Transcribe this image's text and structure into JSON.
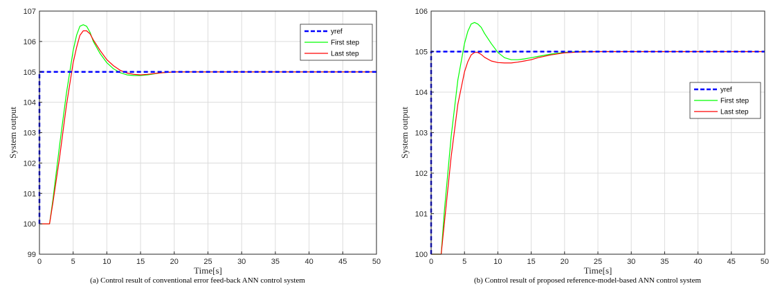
{
  "chart_data": [
    {
      "type": "line",
      "caption": "(a) Control result of conventional error feed-back ANN control system",
      "xlabel": "Time[s]",
      "ylabel": "System output",
      "xlim": [
        0,
        50
      ],
      "ylim": [
        99,
        107
      ],
      "xticks": [
        0,
        5,
        10,
        15,
        20,
        25,
        30,
        35,
        40,
        45,
        50
      ],
      "yticks": [
        99,
        100,
        101,
        102,
        103,
        104,
        105,
        106,
        107
      ],
      "grid": true,
      "legend_position": "top-right",
      "series": [
        {
          "name": "yref",
          "color": "#0000ff",
          "style": "dashed",
          "x": [
            0,
            0,
            50
          ],
          "y": [
            100,
            105,
            105
          ]
        },
        {
          "name": "First step",
          "color": "#00ff00",
          "style": "solid",
          "x": [
            0,
            1.5,
            2,
            3,
            4,
            5,
            5.5,
            6,
            6.5,
            7,
            7.5,
            8,
            9,
            10,
            11,
            12,
            13,
            14,
            15,
            16,
            18,
            20,
            22,
            25,
            30,
            40,
            50
          ],
          "y": [
            100,
            100,
            100.8,
            102.6,
            104.3,
            105.7,
            106.2,
            106.5,
            106.55,
            106.5,
            106.3,
            106.0,
            105.6,
            105.3,
            105.1,
            104.97,
            104.9,
            104.88,
            104.88,
            104.9,
            104.97,
            105.0,
            105.0,
            105.0,
            105.0,
            105.0,
            105.0
          ]
        },
        {
          "name": "Last step",
          "color": "#ff0000",
          "style": "solid",
          "x": [
            0,
            1.5,
            2,
            3,
            4,
            5,
            5.5,
            6,
            6.5,
            7,
            7.5,
            8,
            9,
            10,
            11,
            12,
            13,
            14,
            15,
            16,
            18,
            20,
            22,
            25,
            30,
            40,
            50
          ],
          "y": [
            100,
            100,
            100.7,
            102.2,
            103.9,
            105.3,
            105.8,
            106.2,
            106.35,
            106.35,
            106.25,
            106.05,
            105.7,
            105.4,
            105.2,
            105.05,
            104.96,
            104.92,
            104.9,
            104.92,
            104.97,
            105.0,
            105.0,
            105.0,
            105.0,
            105.0,
            105.0
          ]
        }
      ]
    },
    {
      "type": "line",
      "caption": "(b) Control result of proposed reference-model-based ANN control system",
      "xlabel": "Time[s]",
      "ylabel": "System output",
      "xlim": [
        0,
        50
      ],
      "ylim": [
        100,
        106
      ],
      "xticks": [
        0,
        5,
        10,
        15,
        20,
        25,
        30,
        35,
        40,
        45,
        50
      ],
      "yticks": [
        100,
        101,
        102,
        103,
        104,
        105,
        106
      ],
      "grid": true,
      "legend_position": "right",
      "series": [
        {
          "name": "yref",
          "color": "#0000ff",
          "style": "dashed",
          "x": [
            0,
            0,
            50
          ],
          "y": [
            100,
            105,
            105
          ]
        },
        {
          "name": "First step",
          "color": "#00ff00",
          "style": "solid",
          "x": [
            0,
            1.5,
            2,
            3,
            4,
            5,
            5.5,
            6,
            6.5,
            7,
            7.5,
            8,
            9,
            10,
            11,
            12,
            13,
            14,
            15,
            16,
            18,
            20,
            22,
            25,
            30,
            40,
            50
          ],
          "y": [
            100,
            100,
            101.1,
            102.9,
            104.3,
            105.2,
            105.5,
            105.68,
            105.72,
            105.68,
            105.6,
            105.45,
            105.2,
            104.98,
            104.85,
            104.8,
            104.8,
            104.82,
            104.85,
            104.88,
            104.94,
            104.98,
            105.0,
            105.0,
            105.0,
            105.0,
            105.0
          ]
        },
        {
          "name": "Last step",
          "color": "#ff0000",
          "style": "solid",
          "x": [
            0,
            1.5,
            2,
            3,
            4,
            5,
            5.5,
            6,
            6.5,
            7,
            7.5,
            8,
            9,
            10,
            11,
            12,
            13,
            14,
            15,
            16,
            18,
            20,
            22,
            25,
            30,
            40,
            50
          ],
          "y": [
            100,
            100,
            100.8,
            102.4,
            103.7,
            104.5,
            104.75,
            104.92,
            104.98,
            104.98,
            104.93,
            104.86,
            104.77,
            104.73,
            104.72,
            104.72,
            104.74,
            104.77,
            104.8,
            104.85,
            104.92,
            104.97,
            104.99,
            105.0,
            105.0,
            105.0,
            105.0
          ]
        }
      ]
    }
  ]
}
